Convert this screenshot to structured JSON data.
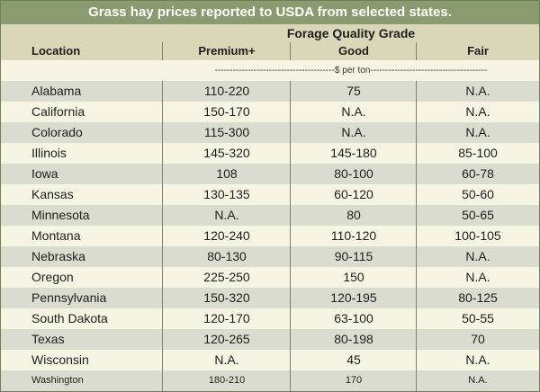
{
  "title": "Grass hay prices reported to USDA from selected states.",
  "group_header": "Forage Quality Grade",
  "columns": {
    "location": "Location",
    "premium": "Premium+",
    "good": "Good",
    "fair": "Fair"
  },
  "unit_line": "----------------------------------------$ per ton---------------------------------------",
  "rows": [
    {
      "location": "Alabama",
      "premium": "110-220",
      "good": "75",
      "fair": "N.A."
    },
    {
      "location": "California",
      "premium": "150-170",
      "good": "N.A.",
      "fair": "N.A."
    },
    {
      "location": "Colorado",
      "premium": "115-300",
      "good": "N.A.",
      "fair": "N.A."
    },
    {
      "location": "Illinois",
      "premium": "145-320",
      "good": "145-180",
      "fair": "85-100"
    },
    {
      "location": "Iowa",
      "premium": "108",
      "good": "80-100",
      "fair": "60-78"
    },
    {
      "location": "Kansas",
      "premium": "130-135",
      "good": "60-120",
      "fair": "50-60"
    },
    {
      "location": "Minnesota",
      "premium": "N.A.",
      "good": "80",
      "fair": "50-65"
    },
    {
      "location": "Montana",
      "premium": "120-240",
      "good": "110-120",
      "fair": "100-105"
    },
    {
      "location": "Nebraska",
      "premium": "80-130",
      "good": "90-115",
      "fair": "N.A."
    },
    {
      "location": "Oregon",
      "premium": "225-250",
      "good": "150",
      "fair": "N.A."
    },
    {
      "location": "Pennsylvania",
      "premium": "150-320",
      "good": "120-195",
      "fair": "80-125"
    },
    {
      "location": "South Dakota",
      "premium": "120-170",
      "good": "63-100",
      "fair": "50-55"
    },
    {
      "location": "Texas",
      "premium": "120-265",
      "good": "80-198",
      "fair": "70"
    },
    {
      "location": "Wisconsin",
      "premium": "N.A.",
      "good": "45",
      "fair": "N.A."
    },
    {
      "location": "Washington",
      "premium": "180-210",
      "good": "170",
      "fair": "N.A."
    }
  ],
  "colors": {
    "title_bar": "#8b9b70",
    "header_bg": "#dad6b8",
    "row_shade": "#d9dccf",
    "row_light": "#f6f4e3"
  }
}
